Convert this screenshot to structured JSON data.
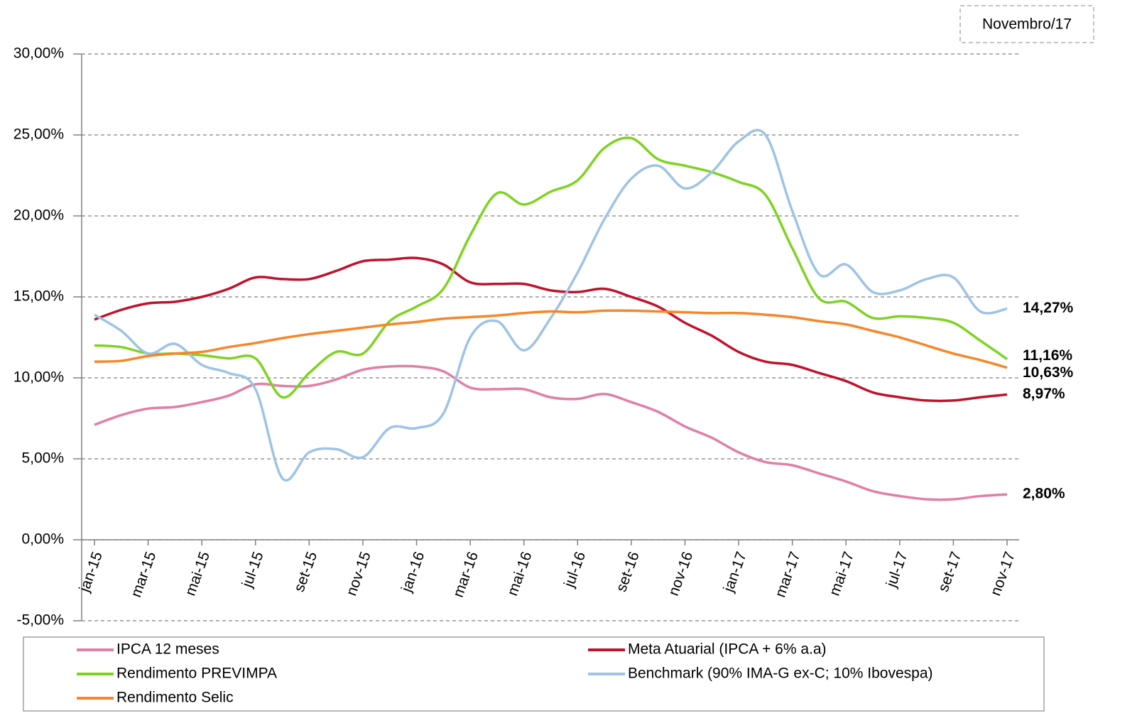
{
  "chart_data": {
    "type": "line",
    "annotation": "Novembro/17",
    "categories": [
      "jan-15",
      null,
      "mar-15",
      null,
      "mai-15",
      null,
      "jul-15",
      null,
      "set-15",
      null,
      "nov-15",
      null,
      "jan-16",
      null,
      "mar-16",
      null,
      "mai-16",
      null,
      "jul-16",
      null,
      "set-16",
      null,
      "nov-16",
      null,
      "jan-17",
      null,
      "mar-17",
      null,
      "mai-17",
      null,
      "jul-17",
      null,
      "set-17",
      null,
      "nov-17"
    ],
    "ylim": [
      -5,
      30
    ],
    "yticks": [
      {
        "value": -5,
        "label": "-5,00%"
      },
      {
        "value": 0,
        "label": "0,00%"
      },
      {
        "value": 5,
        "label": "5,00%"
      },
      {
        "value": 10,
        "label": "10,00%"
      },
      {
        "value": 15,
        "label": "15,00%"
      },
      {
        "value": 20,
        "label": "20,00%"
      },
      {
        "value": 25,
        "label": "25,00%"
      },
      {
        "value": 30,
        "label": "30,00%"
      }
    ],
    "grid": true,
    "legend": "bottom",
    "series": [
      {
        "name": "IPCA 12 meses",
        "color": "#e07fa6",
        "values": [
          7.1,
          7.7,
          8.1,
          8.2,
          8.5,
          8.9,
          9.6,
          9.5,
          9.5,
          9.9,
          10.5,
          10.7,
          10.7,
          10.4,
          9.4,
          9.3,
          9.3,
          8.8,
          8.7,
          9.0,
          8.5,
          7.9,
          7.0,
          6.3,
          5.4,
          4.8,
          4.6,
          4.1,
          3.6,
          3.0,
          2.7,
          2.5,
          2.5,
          2.7,
          2.8
        ],
        "value_labels": [
          null,
          null,
          null,
          null,
          null,
          null,
          null,
          null,
          null,
          null,
          null,
          null,
          null,
          null,
          null,
          null,
          null,
          null,
          null,
          null,
          null,
          null,
          null,
          null,
          null,
          null,
          null,
          null,
          null,
          null,
          null,
          null,
          null,
          null,
          "2,80%"
        ]
      },
      {
        "name": "Meta Atuarial (IPCA + 6% a.a)",
        "color": "#c0122c",
        "values": [
          13.6,
          14.2,
          14.6,
          14.7,
          15.0,
          15.5,
          16.2,
          16.1,
          16.1,
          16.6,
          17.2,
          17.3,
          17.4,
          17.0,
          15.9,
          15.8,
          15.8,
          15.4,
          15.3,
          15.5,
          15.0,
          14.4,
          13.4,
          12.6,
          11.6,
          11.0,
          10.8,
          10.3,
          9.8,
          9.1,
          8.8,
          8.6,
          8.6,
          8.8,
          8.97
        ],
        "value_labels": [
          null,
          null,
          null,
          null,
          null,
          null,
          null,
          null,
          null,
          null,
          null,
          null,
          null,
          null,
          null,
          null,
          null,
          null,
          null,
          null,
          null,
          null,
          null,
          null,
          null,
          null,
          null,
          null,
          null,
          null,
          null,
          null,
          null,
          null,
          "8,97%"
        ]
      },
      {
        "name": "Rendimento PREVIMPA",
        "color": "#7ed321",
        "values": [
          12.0,
          11.9,
          11.5,
          11.5,
          11.4,
          11.2,
          11.2,
          8.8,
          10.3,
          11.6,
          11.5,
          13.5,
          14.4,
          15.5,
          18.8,
          21.4,
          20.7,
          21.5,
          22.2,
          24.2,
          24.8,
          23.5,
          23.1,
          22.7,
          22.1,
          21.3,
          18.0,
          14.9,
          14.7,
          13.7,
          13.8,
          13.7,
          13.4,
          12.3,
          11.16
        ],
        "value_labels": [
          null,
          null,
          null,
          null,
          null,
          null,
          null,
          null,
          null,
          null,
          null,
          null,
          null,
          null,
          null,
          null,
          null,
          null,
          null,
          null,
          null,
          null,
          null,
          null,
          null,
          null,
          null,
          null,
          null,
          null,
          null,
          null,
          null,
          null,
          "11,16%"
        ]
      },
      {
        "name": "Benchmark (90% IMA-G ex-C; 10% Ibovespa)",
        "color": "#9dc3e6",
        "values": [
          13.9,
          12.9,
          11.5,
          12.1,
          10.8,
          10.3,
          9.3,
          3.8,
          5.4,
          5.6,
          5.1,
          6.9,
          6.9,
          7.8,
          12.5,
          13.5,
          11.7,
          13.7,
          16.5,
          19.8,
          22.3,
          23.1,
          21.7,
          22.7,
          24.6,
          25.0,
          20.3,
          16.4,
          17.0,
          15.3,
          15.4,
          16.1,
          16.2,
          14.1,
          14.27
        ],
        "value_labels": [
          null,
          null,
          null,
          null,
          null,
          null,
          null,
          null,
          null,
          null,
          null,
          null,
          null,
          null,
          null,
          null,
          null,
          null,
          null,
          null,
          null,
          null,
          null,
          null,
          null,
          null,
          null,
          null,
          null,
          null,
          null,
          null,
          null,
          null,
          "14,27%"
        ]
      },
      {
        "name": "Rendimento Selic",
        "color": "#f7862a",
        "values": [
          11.0,
          11.05,
          11.35,
          11.5,
          11.6,
          11.9,
          12.15,
          12.45,
          12.7,
          12.9,
          13.1,
          13.3,
          13.45,
          13.65,
          13.75,
          13.85,
          14.0,
          14.1,
          14.05,
          14.15,
          14.15,
          14.1,
          14.05,
          14.0,
          14.0,
          13.9,
          13.75,
          13.5,
          13.3,
          12.9,
          12.5,
          12.0,
          11.5,
          11.1,
          10.63
        ],
        "value_labels": [
          null,
          null,
          null,
          null,
          null,
          null,
          null,
          null,
          null,
          null,
          null,
          null,
          null,
          null,
          null,
          null,
          null,
          null,
          null,
          null,
          null,
          null,
          null,
          null,
          null,
          null,
          null,
          null,
          null,
          null,
          null,
          null,
          null,
          null,
          "10,63%"
        ]
      }
    ]
  }
}
